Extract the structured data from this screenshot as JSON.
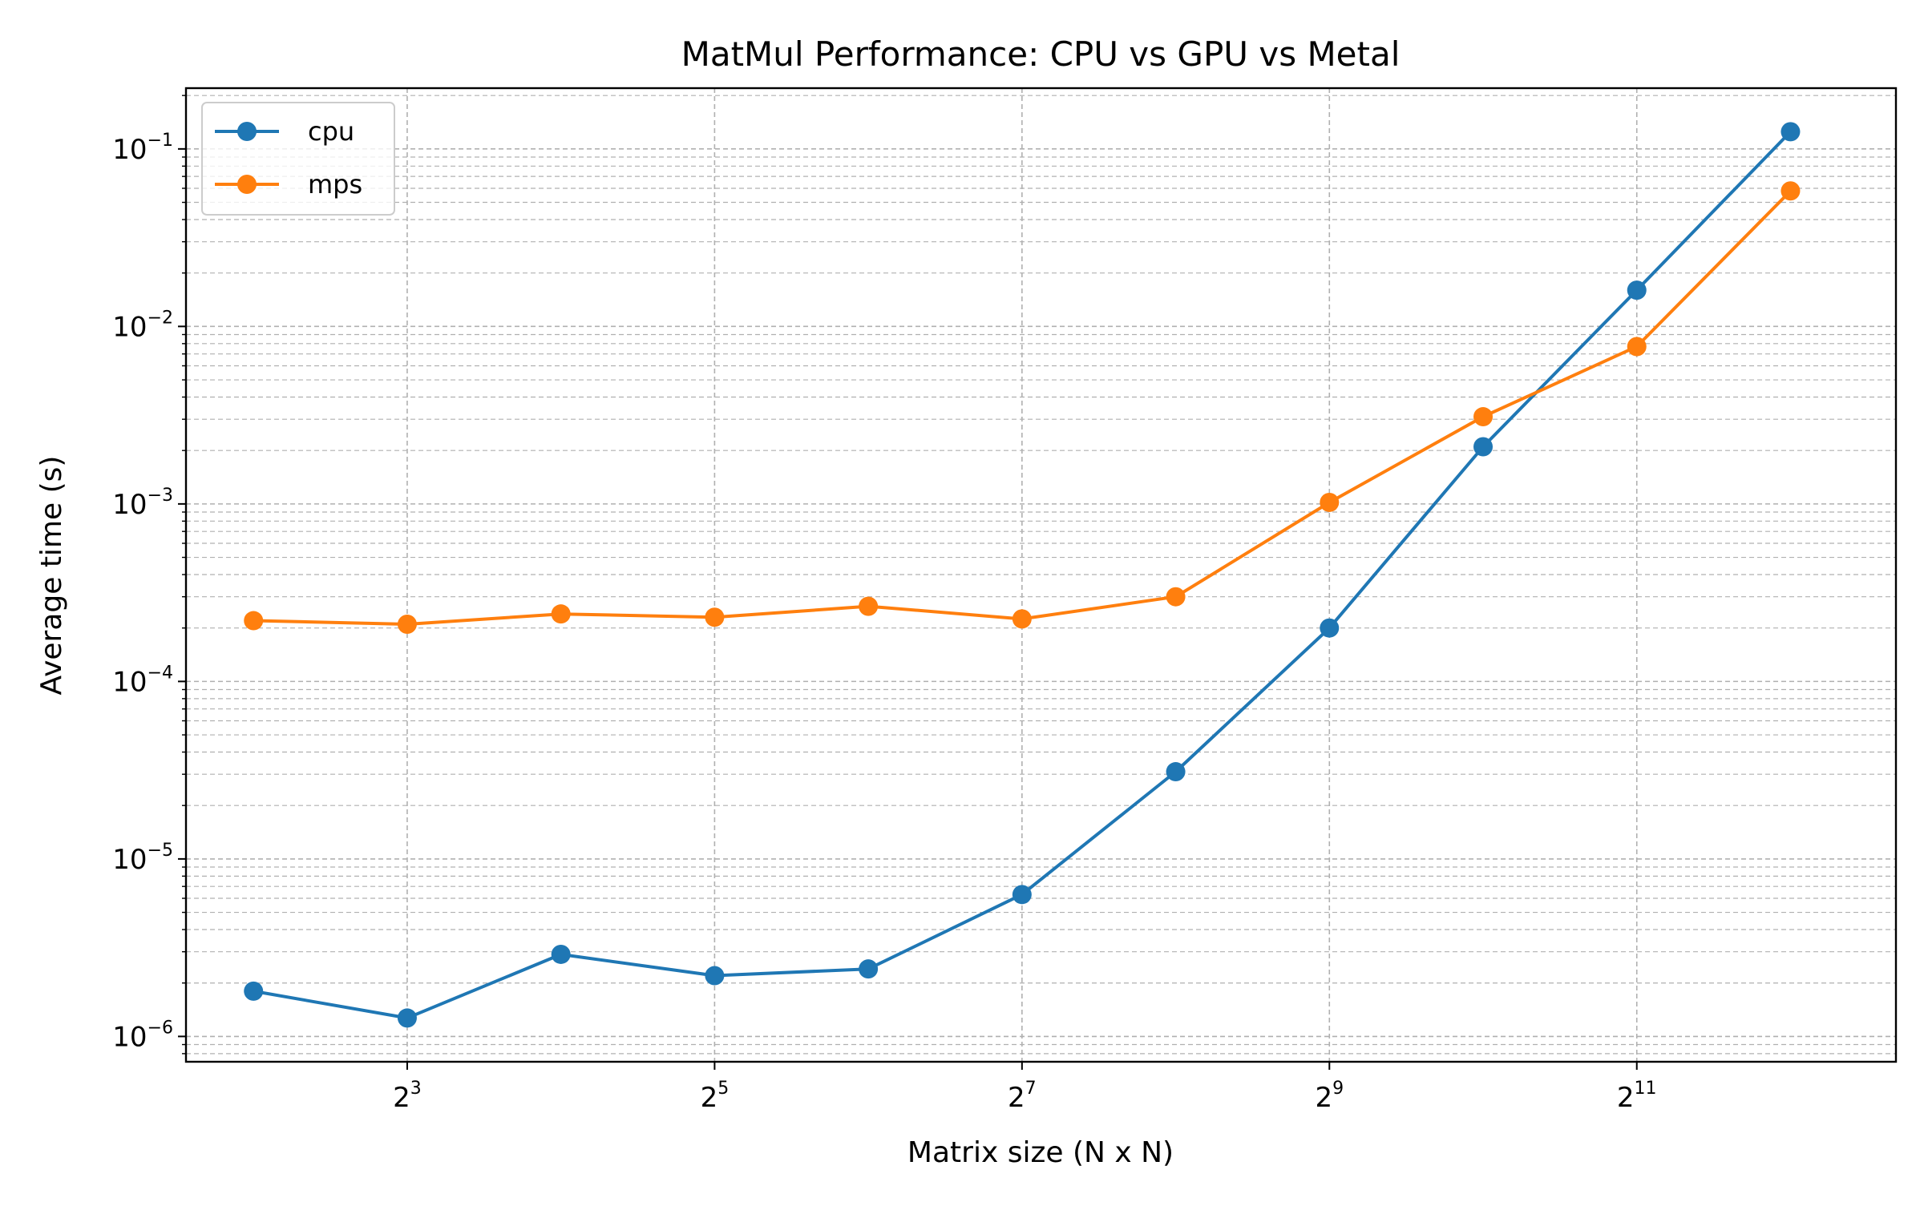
{
  "chart_data": {
    "type": "line",
    "title": "MatMul Performance: CPU vs GPU vs Metal",
    "xlabel": "Matrix size (N x N)",
    "ylabel": "Average time (s)",
    "xscale": "log2",
    "yscale": "log10",
    "x": [
      4,
      8,
      16,
      32,
      64,
      128,
      256,
      512,
      1024,
      2048,
      4096
    ],
    "xlim": [
      2.95,
      6590
    ],
    "ylim": [
      7.2e-07,
      0.22
    ],
    "x_ticks": [
      {
        "base": "2",
        "exp": "3",
        "value": 8
      },
      {
        "base": "2",
        "exp": "5",
        "value": 32
      },
      {
        "base": "2",
        "exp": "7",
        "value": 128
      },
      {
        "base": "2",
        "exp": "9",
        "value": 512
      },
      {
        "base": "2",
        "exp": "11",
        "value": 2048
      }
    ],
    "y_ticks": [
      {
        "base": "10",
        "exp": "−6",
        "value": 1e-06
      },
      {
        "base": "10",
        "exp": "−5",
        "value": 1e-05
      },
      {
        "base": "10",
        "exp": "−4",
        "value": 0.0001
      },
      {
        "base": "10",
        "exp": "−3",
        "value": 0.001
      },
      {
        "base": "10",
        "exp": "−2",
        "value": 0.01
      },
      {
        "base": "10",
        "exp": "−1",
        "value": 0.1
      }
    ],
    "grid": true,
    "legend_position": "top-left",
    "series": [
      {
        "name": "cpu",
        "color": "#1f77b4",
        "values": [
          1.8e-06,
          1.27e-06,
          2.9e-06,
          2.2e-06,
          2.4e-06,
          6.3e-06,
          3.1e-05,
          0.0002,
          0.0021,
          0.016,
          0.125
        ]
      },
      {
        "name": "mps",
        "color": "#ff7f0e",
        "values": [
          0.00022,
          0.00021,
          0.00024,
          0.00023,
          0.000265,
          0.000225,
          0.0003,
          0.00102,
          0.0031,
          0.0077,
          0.058
        ]
      }
    ]
  }
}
